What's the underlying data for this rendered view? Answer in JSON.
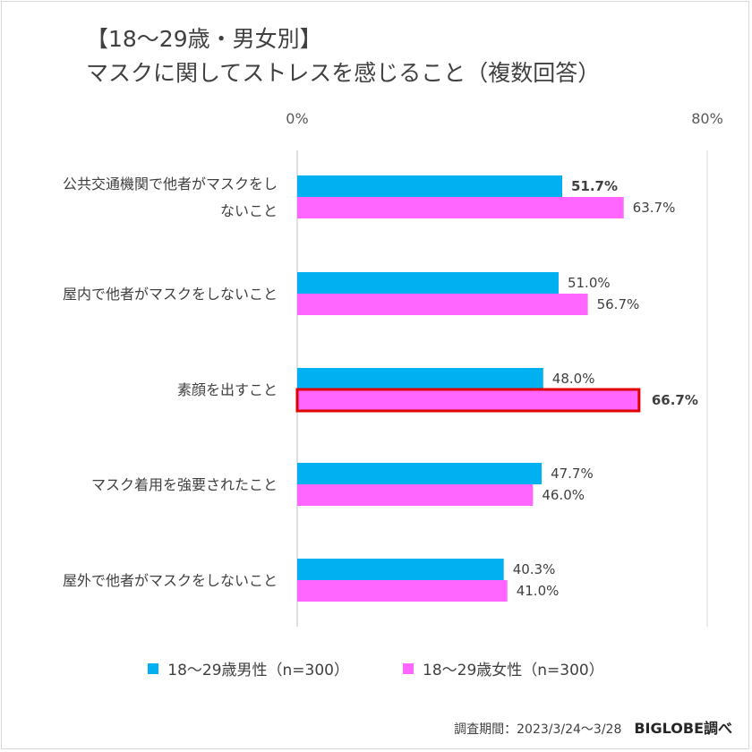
{
  "chart_data": {
    "type": "bar",
    "orientation": "horizontal",
    "title_line1": "【18〜29歳・男女別】",
    "title_line2": "マスクに関してストレスを感じること（複数回答）",
    "categories": [
      "公共交通機関で他者がマスクをしないこと",
      "屋内で他者がマスクをしないこと",
      "素顔を出すこと",
      "マスク着用を強要されたこと",
      "屋外で他者がマスクをしないこと"
    ],
    "category_lines": [
      [
        "公共交通機関で他者がマスクをし",
        "ないこと"
      ],
      [
        "屋内で他者がマスクをしないこと"
      ],
      [
        "素顔を出すこと"
      ],
      [
        "マスク着用を強要されたこと"
      ],
      [
        "屋外で他者がマスクをしないこと"
      ]
    ],
    "series": [
      {
        "name": "18〜29歳男性（n=300）",
        "color": "#00b0f0",
        "values": [
          51.7,
          51.0,
          48.0,
          47.7,
          40.3
        ],
        "labels": [
          "51.7%",
          "51.0%",
          "48.0%",
          "47.7%",
          "40.3%"
        ],
        "bold": [
          true,
          false,
          false,
          false,
          false
        ]
      },
      {
        "name": "18〜29歳女性（n=300）",
        "color": "#ff66ff",
        "values": [
          63.7,
          56.7,
          66.7,
          46.0,
          41.0
        ],
        "labels": [
          "63.7%",
          "56.7%",
          "66.7%",
          "46.0%",
          "41.0%"
        ],
        "bold": [
          false,
          false,
          true,
          false,
          false
        ],
        "highlight": [
          false,
          false,
          true,
          false,
          false
        ]
      }
    ],
    "xlim": [
      0,
      80
    ],
    "ticks": [
      "0%",
      "80%"
    ],
    "highlight_color": "#e00000",
    "legend_position": "bottom"
  },
  "footer": {
    "period": "調査期間：2023/3/24〜3/28",
    "brand": "BIGLOBE調べ"
  }
}
